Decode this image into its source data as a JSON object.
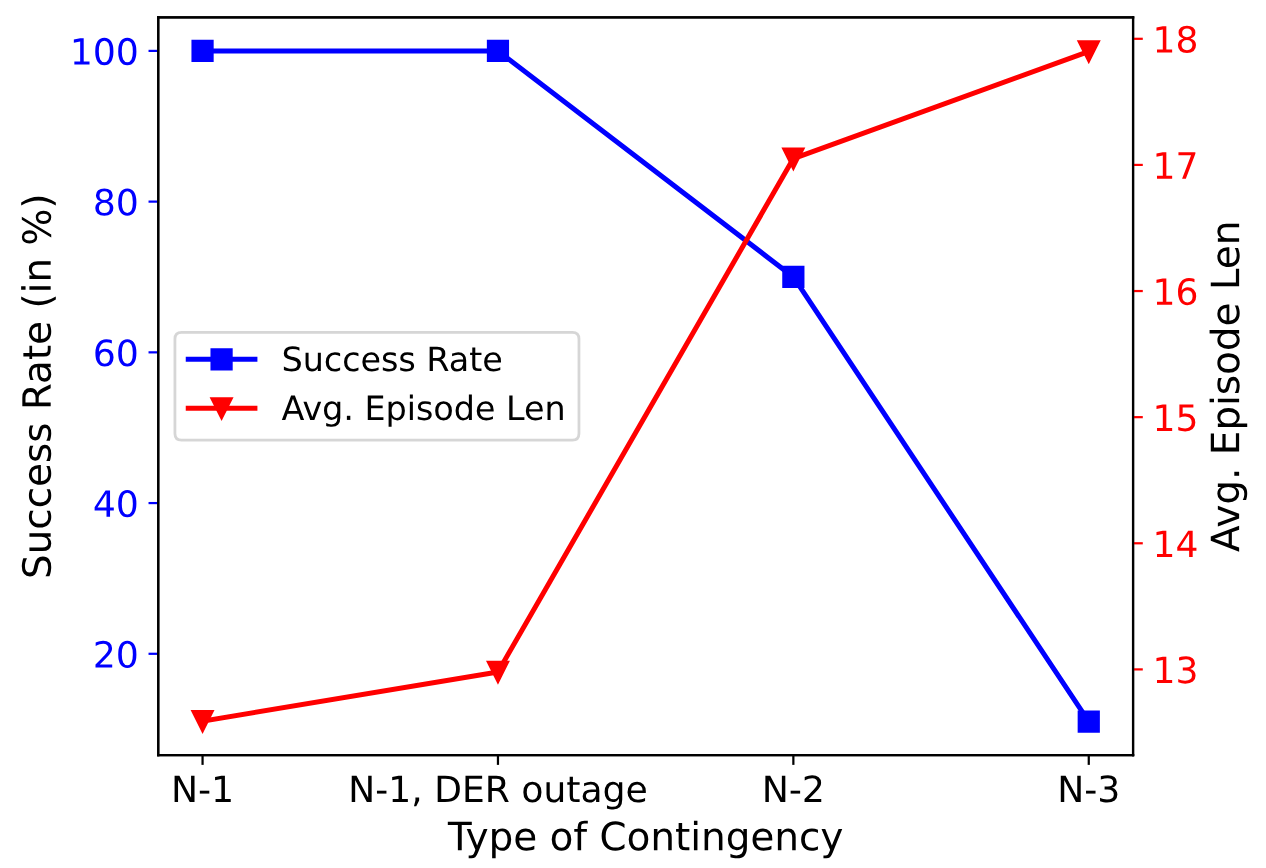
{
  "chart_data": {
    "type": "line",
    "xlabel": "Type of Contingency",
    "ylabel": "Success Rate (in %)",
    "y2label": "Avg. Episode Len",
    "categories": [
      "N-1",
      "N-1, DER outage",
      "N-2",
      "N-3"
    ],
    "series": [
      {
        "name": "Success Rate",
        "color": "#0000ff",
        "marker": "square",
        "values": [
          100,
          100,
          70,
          11
        ]
      },
      {
        "name": "Avg. Episode Len",
        "color": "#ff0000",
        "marker": "triangle",
        "axis": "y2",
        "values": [
          12.59,
          12.98,
          17.05,
          17.9
        ]
      }
    ],
    "ylim": [
      6.55,
      104.45
    ],
    "yticks": [
      20,
      40,
      60,
      80,
      100
    ],
    "y2lim": [
      12.32,
      18.17
    ],
    "y2ticks": [
      13,
      14,
      15,
      16,
      17,
      18
    ],
    "legend": "center left",
    "grid": false
  }
}
